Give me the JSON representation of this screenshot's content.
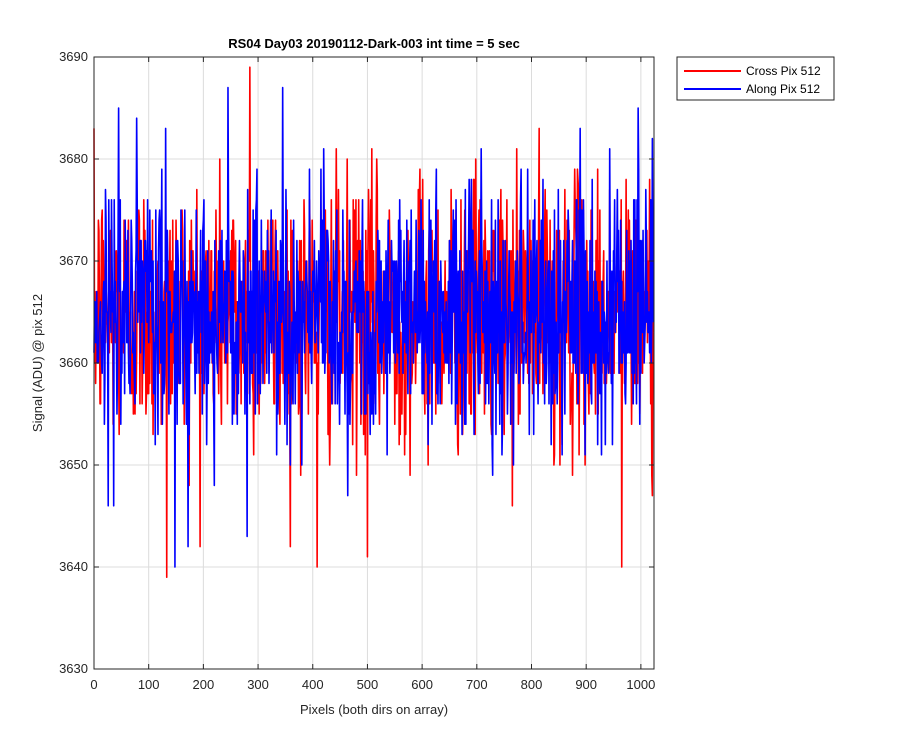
{
  "chart_data": {
    "type": "line",
    "title": "RS04 Day03 20190112-Dark-003 int time = 5 sec",
    "xlabel": "Pixels (both dirs on array)",
    "ylabel": "Signal (ADU) @ pix 512",
    "xlim": [
      0,
      1024
    ],
    "ylim": [
      3630,
      3690
    ],
    "xticks": [
      0,
      100,
      200,
      300,
      400,
      500,
      600,
      700,
      800,
      900,
      1000
    ],
    "yticks": [
      3630,
      3640,
      3650,
      3660,
      3670,
      3680,
      3690
    ],
    "grid": true,
    "legend_position": "outside-top-right",
    "series": [
      {
        "name": "Cross Pix 512",
        "color": "#ff0000",
        "mean": 3665,
        "noise_std": 6.5,
        "n_points": 1024,
        "peaks": [
          {
            "x": 133,
            "y": 3639
          },
          {
            "x": 285,
            "y": 3689
          },
          {
            "x": 408,
            "y": 3640
          },
          {
            "x": 500,
            "y": 3641
          },
          {
            "x": 965,
            "y": 3640
          },
          {
            "x": 1020,
            "y": 3649
          }
        ]
      },
      {
        "name": "Along Pix 512",
        "color": "#0000ff",
        "mean": 3665,
        "noise_std": 6.2,
        "n_points": 1024,
        "peaks": [
          {
            "x": 45,
            "y": 3685
          },
          {
            "x": 148,
            "y": 3640
          },
          {
            "x": 245,
            "y": 3687
          },
          {
            "x": 280,
            "y": 3643
          },
          {
            "x": 345,
            "y": 3687
          },
          {
            "x": 995,
            "y": 3685
          }
        ]
      }
    ]
  }
}
